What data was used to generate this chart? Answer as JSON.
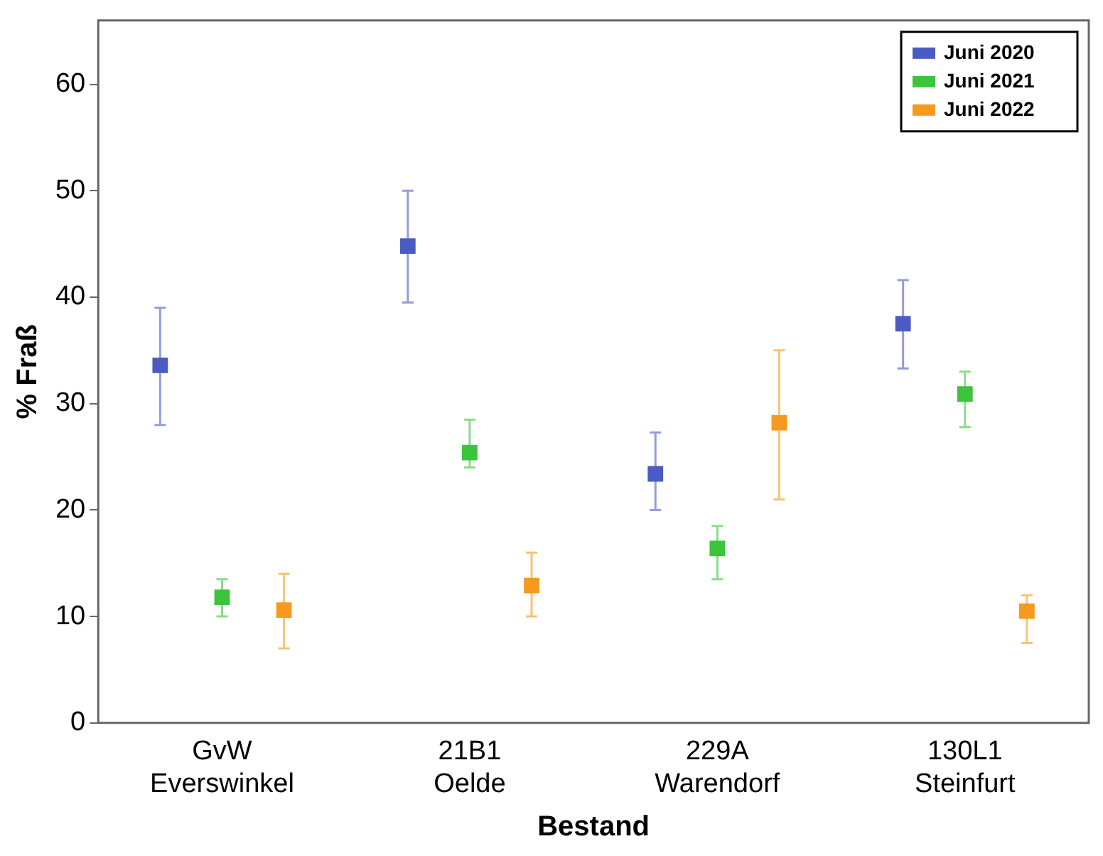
{
  "chart_data": {
    "type": "scatter",
    "xlabel": "Bestand",
    "ylabel": "% Fraß",
    "categories": [
      "GvW\nEverswinkel",
      "21B1\nOelde",
      "229A\nWarendorf",
      "130L1\nSteinfurt"
    ],
    "ylim": [
      0,
      66
    ],
    "yticks": [
      0,
      10,
      20,
      30,
      40,
      50,
      60
    ],
    "grid": false,
    "legend": "top right",
    "marker": "square",
    "series": [
      {
        "name": "Juni 2020",
        "color": "#4a5bc4",
        "values": [
          33.6,
          44.8,
          23.4,
          37.5
        ],
        "errors": [
          [
            28,
            39
          ],
          [
            39.5,
            50
          ],
          [
            20,
            27.3
          ],
          [
            33.3,
            41.6
          ]
        ]
      },
      {
        "name": "Juni 2021",
        "color": "#3cc43c",
        "values": [
          11.8,
          25.4,
          16.4,
          30.9
        ],
        "errors": [
          [
            10,
            13.5
          ],
          [
            24,
            28.5
          ],
          [
            13.5,
            18.5
          ],
          [
            27.8,
            33
          ]
        ]
      },
      {
        "name": "Juni 2022",
        "color": "#f59a1e",
        "values": [
          10.6,
          12.9,
          28.2,
          10.5
        ],
        "errors": [
          [
            7,
            14
          ],
          [
            10,
            16
          ],
          [
            21,
            35
          ],
          [
            7.5,
            12
          ]
        ]
      }
    ]
  }
}
